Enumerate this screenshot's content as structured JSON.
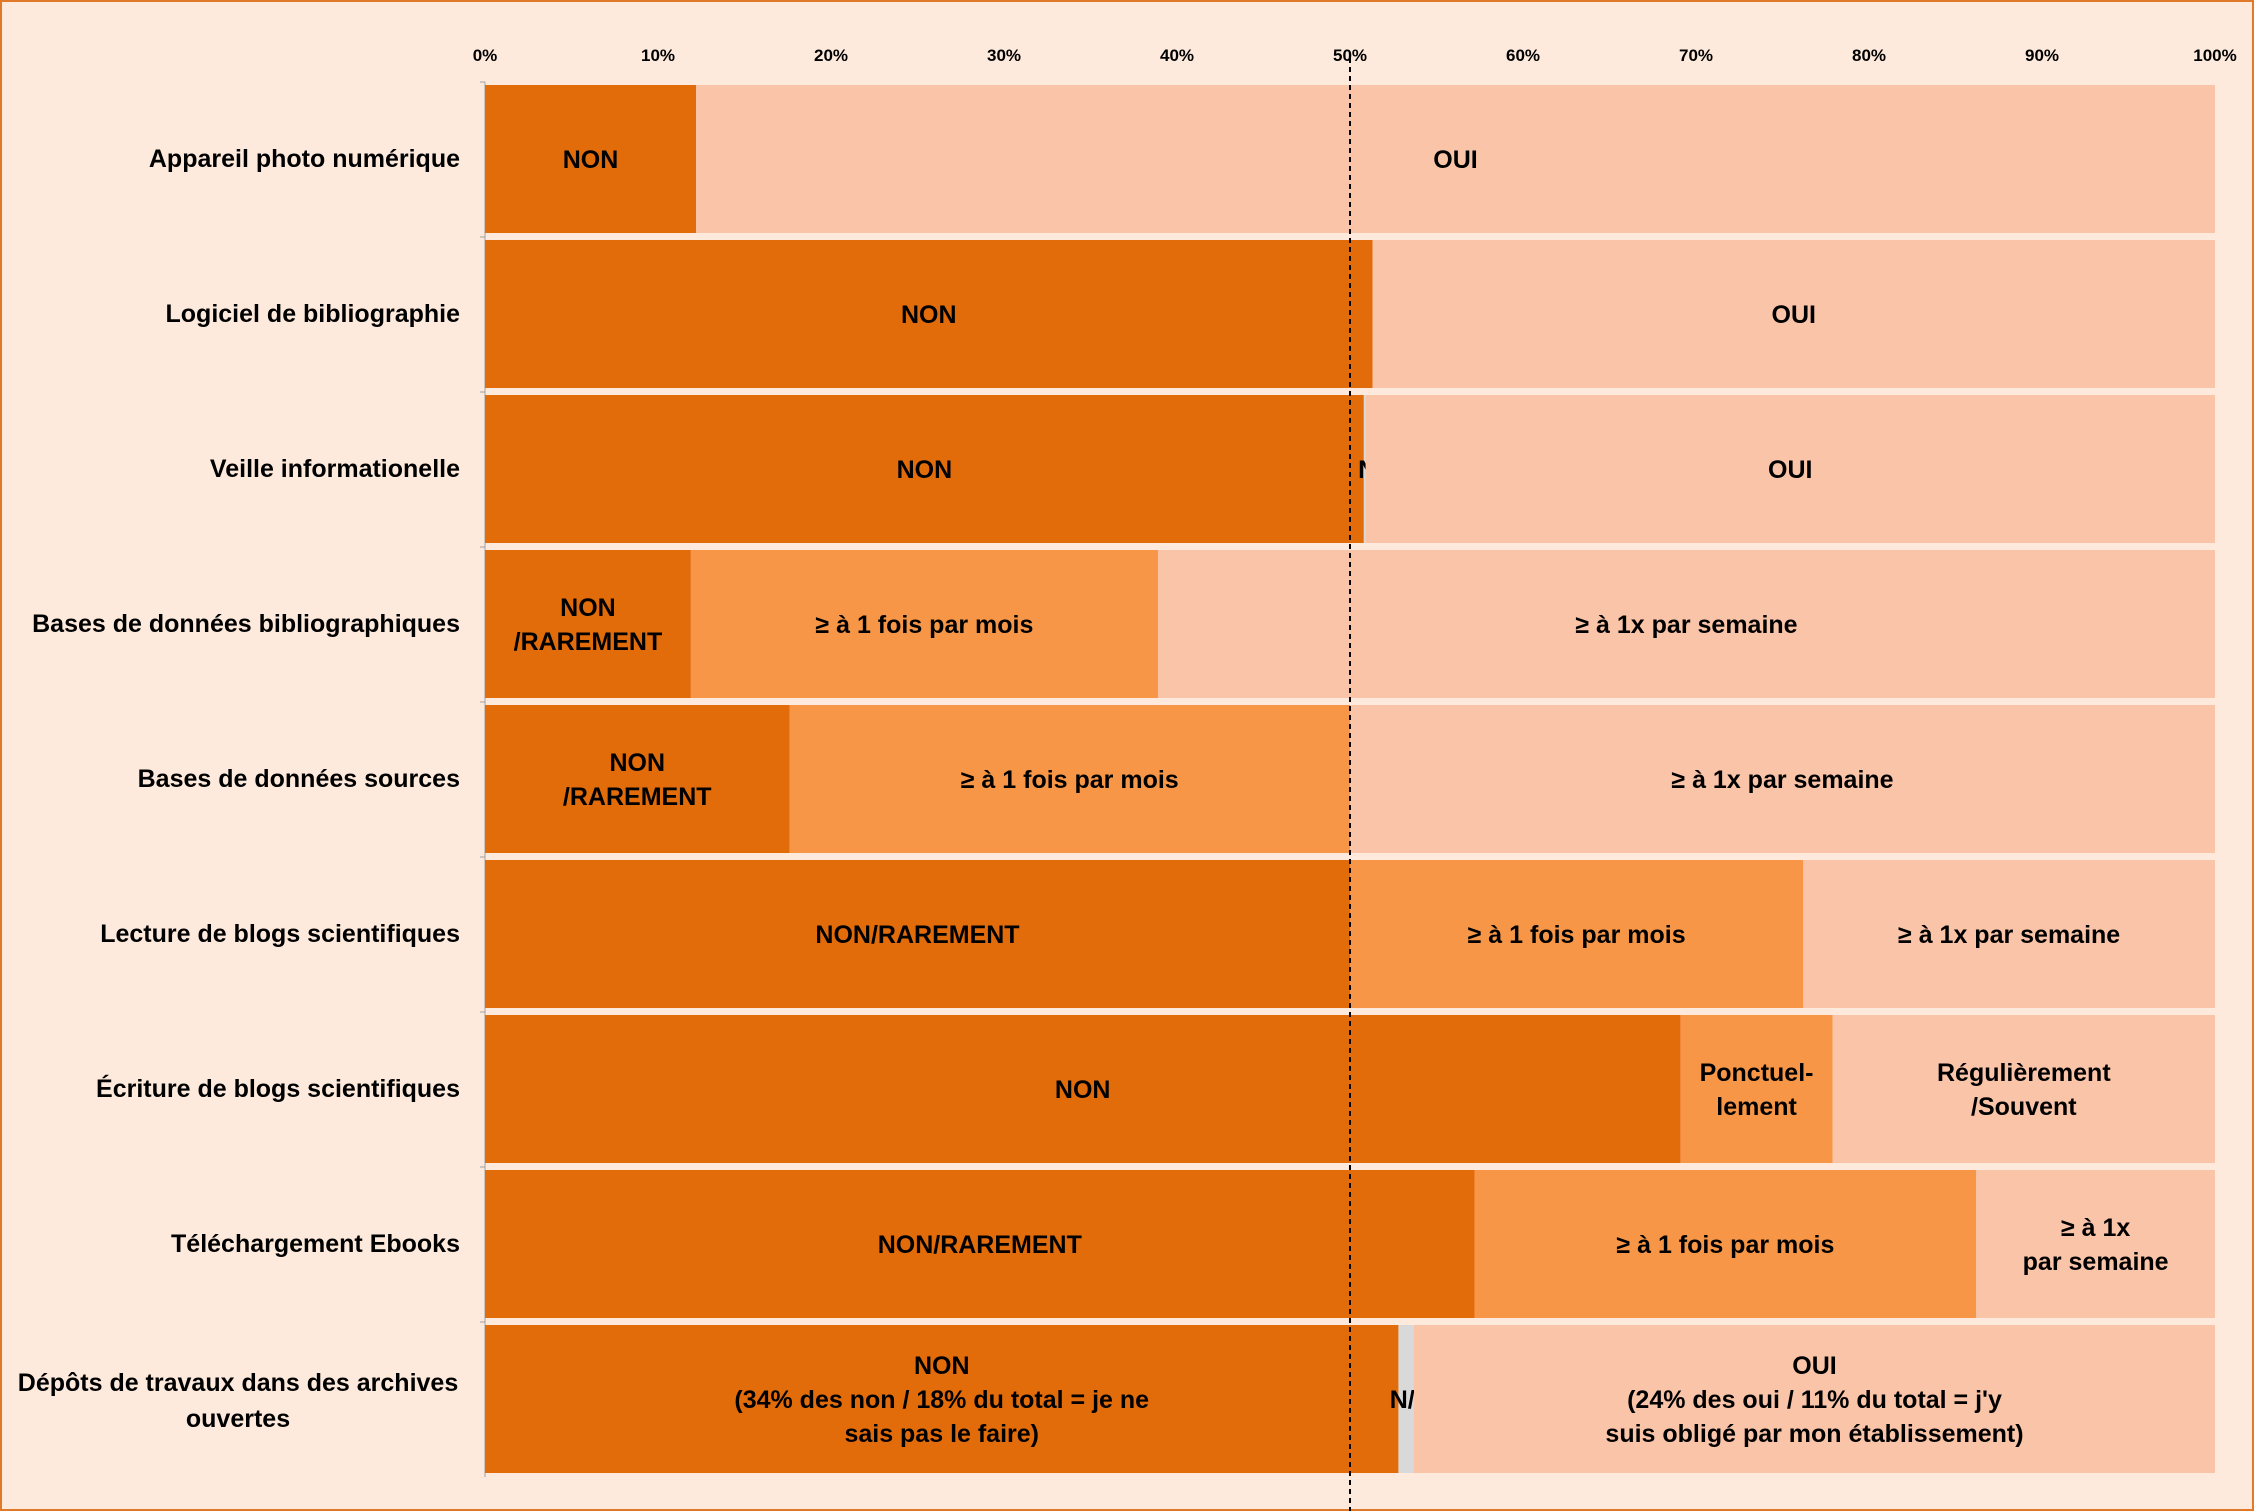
{
  "colors": {
    "background": "#fdeadc",
    "border": "#e07a2a",
    "non": "#e26b0a",
    "mois": "#f79646",
    "oui": "#fac4a8",
    "na": "#d9d9d9",
    "ref_line": "#000000"
  },
  "chart_data": {
    "type": "bar",
    "orientation": "horizontal",
    "stacked": true,
    "unit": "percent",
    "title": "",
    "xlabel": "",
    "ylabel": "",
    "xlim": [
      0,
      100
    ],
    "ticks": [
      "0%",
      "10%",
      "20%",
      "30%",
      "40%",
      "50%",
      "60%",
      "70%",
      "80%",
      "90%",
      "100%"
    ],
    "tick_position": "top",
    "reference_line": 50,
    "grid": false,
    "legend": "none",
    "categories": [
      "Appareil photo numérique",
      "Logiciel de bibliographie",
      "Veille informationelle",
      "Bases de données bibliographiques",
      "Bases de données sources",
      "Lecture de blogs scientifiques",
      "Écriture de blogs scientifiques",
      "Téléchargement Ebooks",
      "Dépôts de travaux dans des archives ouvertes"
    ],
    "rows": [
      {
        "segments": [
          {
            "value": 12.2,
            "label": "NON",
            "color": "non"
          },
          {
            "value": 87.8,
            "label": "OUI",
            "color": "oui"
          }
        ]
      },
      {
        "segments": [
          {
            "value": 51.3,
            "label": "NON",
            "color": "non"
          },
          {
            "value": 48.7,
            "label": "OUI",
            "color": "oui"
          }
        ]
      },
      {
        "segments": [
          {
            "value": 50.8,
            "label": "NON",
            "color": "non"
          },
          {
            "value": 0.1,
            "label": "N/A",
            "color": "na"
          },
          {
            "value": 49.1,
            "label": "OUI",
            "color": "oui"
          }
        ]
      },
      {
        "segments": [
          {
            "value": 11.9,
            "label": "NON\n/RAREMENT",
            "color": "non"
          },
          {
            "value": 27.0,
            "label": "≥ à 1 fois par mois",
            "color": "mois"
          },
          {
            "value": 61.1,
            "label": "≥ à 1x par semaine",
            "color": "oui"
          }
        ]
      },
      {
        "segments": [
          {
            "value": 17.6,
            "label": "NON\n/RAREMENT",
            "color": "non"
          },
          {
            "value": 32.4,
            "label": "≥ à 1 fois par mois",
            "color": "mois"
          },
          {
            "value": 50.0,
            "label": "≥ à 1x par semaine",
            "color": "oui"
          }
        ]
      },
      {
        "segments": [
          {
            "value": 50.0,
            "label": "NON/RAREMENT",
            "color": "non"
          },
          {
            "value": 26.2,
            "label": "≥ à 1 fois par mois",
            "color": "mois"
          },
          {
            "value": 23.8,
            "label": "≥ à 1x par semaine",
            "color": "oui"
          }
        ]
      },
      {
        "segments": [
          {
            "value": 69.1,
            "label": "NON",
            "color": "non"
          },
          {
            "value": 8.8,
            "label": "Ponctuel-\nlement",
            "color": "mois"
          },
          {
            "value": 22.1,
            "label": "Régulièrement\n/Souvent",
            "color": "oui"
          }
        ]
      },
      {
        "segments": [
          {
            "value": 57.2,
            "label": "NON/RAREMENT",
            "color": "non"
          },
          {
            "value": 29.0,
            "label": "≥ à 1 fois par mois",
            "color": "mois"
          },
          {
            "value": 13.8,
            "label": "≥ à 1x\npar semaine",
            "color": "oui"
          }
        ]
      },
      {
        "segments": [
          {
            "value": 52.8,
            "label": "NON\n(34% des non / 18% du total  = je ne\nsais pas le faire)",
            "color": "non"
          },
          {
            "value": 0.9,
            "label": "N/A",
            "color": "na"
          },
          {
            "value": 46.3,
            "label": "OUI\n(24% des oui / 11% du total = j'y\nsuis obligé par mon établissement)",
            "color": "oui"
          }
        ]
      }
    ]
  }
}
